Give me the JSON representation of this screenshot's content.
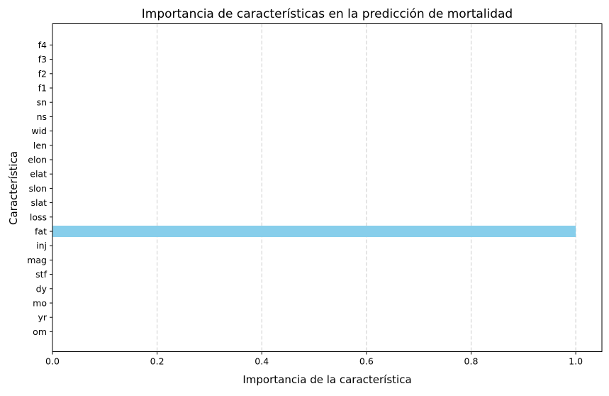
{
  "chart_data": {
    "type": "bar",
    "orientation": "horizontal",
    "title": "Importancia de características en la predicción de mortalidad",
    "xlabel": "Importancia de la característica",
    "ylabel": "Característica",
    "categories": [
      "om",
      "yr",
      "mo",
      "dy",
      "stf",
      "mag",
      "inj",
      "fat",
      "loss",
      "slat",
      "slon",
      "elat",
      "elon",
      "len",
      "wid",
      "ns",
      "sn",
      "f1",
      "f2",
      "f3",
      "f4"
    ],
    "values": [
      0,
      0,
      0,
      0,
      0,
      0,
      0,
      1.0,
      0,
      0,
      0,
      0,
      0,
      0,
      0,
      0,
      0,
      0,
      0,
      0,
      0
    ],
    "xlim": [
      0,
      1.05
    ],
    "xticks": [
      "0.0",
      "0.2",
      "0.4",
      "0.6",
      "0.8",
      "1.0"
    ],
    "grid": "x-dashed",
    "bar_color": "#87ceeb",
    "grid_color": "#cccccc"
  }
}
